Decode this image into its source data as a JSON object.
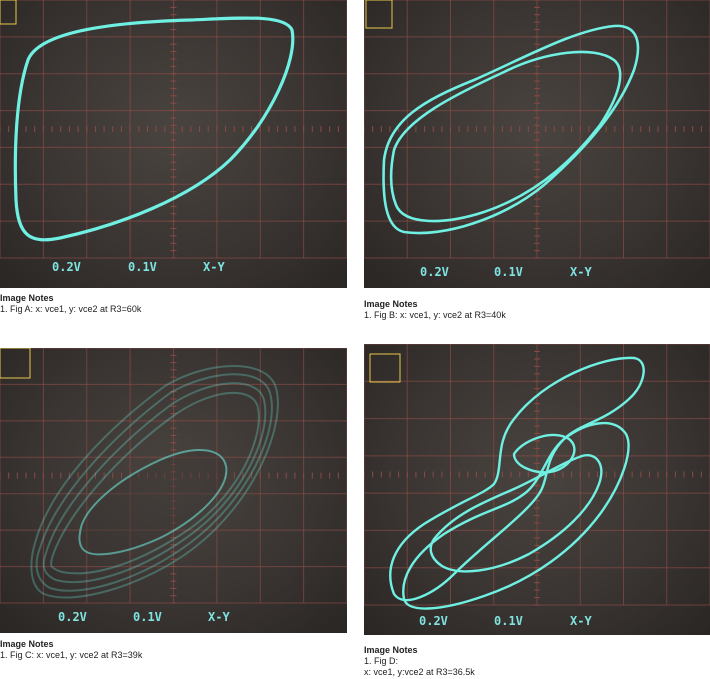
{
  "panels": [
    {
      "id": "A",
      "readouts": [
        "0.2V",
        "0.1V",
        "X-Y"
      ],
      "notes_header": "Image Notes",
      "notes_lines": [
        "1. Fig A: x: vce1, y: vce2 at R3=60k"
      ]
    },
    {
      "id": "B",
      "readouts": [
        "0.2V",
        "0.1V",
        "X-Y"
      ],
      "notes_header": "Image Notes",
      "notes_lines": [
        "1. Fig B: x: vce1, y: vce2 at R3=40k"
      ]
    },
    {
      "id": "C",
      "readouts": [
        "0.2V",
        "0.1V",
        "X-Y"
      ],
      "notes_header": "Image Notes",
      "notes_lines": [
        "1. Fig C: x: vce1, y: vce2 at R3=39k"
      ]
    },
    {
      "id": "D",
      "readouts": [
        "0.2V",
        "0.1V",
        "X-Y"
      ],
      "notes_header": "Image Notes",
      "notes_lines": [
        "1. Fig D:",
        "x: vce1, y:vce2 at R3=36.5k"
      ]
    }
  ],
  "colors": {
    "trace": "#6ff0e2",
    "grid": "#8a4a44",
    "marker": "#e8c84a",
    "screen": "#3a3532"
  }
}
